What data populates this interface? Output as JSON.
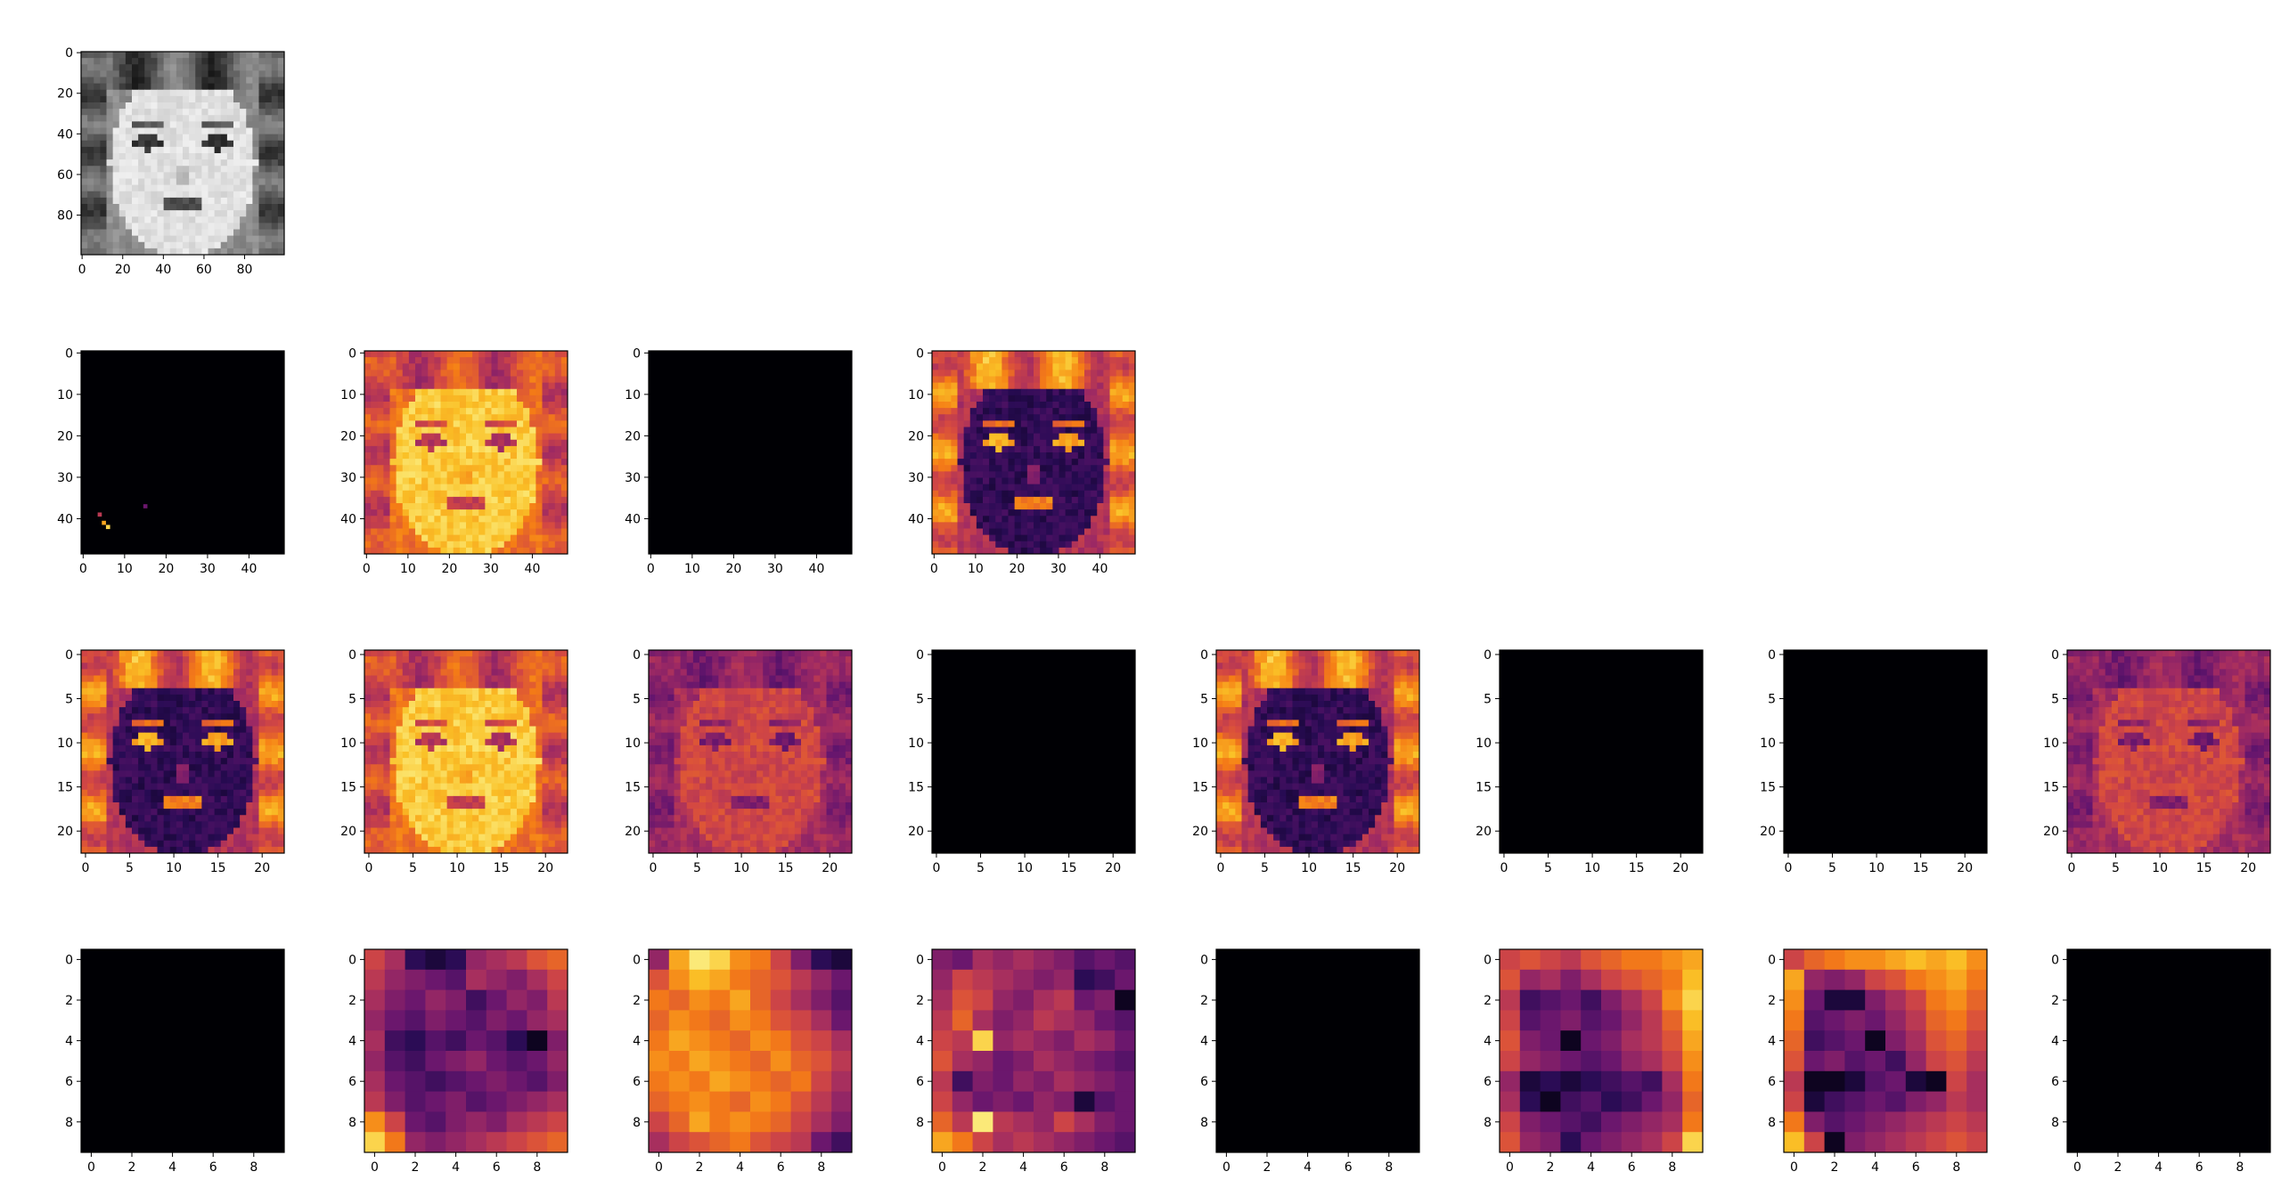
{
  "figure": {
    "rows": 4,
    "cols": 8
  },
  "chart_data": [
    {
      "type": "heatmap",
      "row": 0,
      "col": 0,
      "content": "face",
      "colormap": "gray",
      "xticks": [
        "0",
        "20",
        "40",
        "60",
        "80"
      ],
      "yticks": [
        "0",
        "20",
        "40",
        "60",
        "80"
      ],
      "xlim": [
        0,
        100
      ],
      "ylim": [
        0,
        100
      ]
    },
    {
      "type": "heatmap",
      "row": 1,
      "col": 0,
      "content": "black-specks",
      "colormap": "inferno",
      "xticks": [
        "0",
        "10",
        "20",
        "30",
        "40"
      ],
      "yticks": [
        "0",
        "10",
        "20",
        "30",
        "40"
      ],
      "xlim": [
        0,
        49
      ],
      "ylim": [
        0,
        49
      ]
    },
    {
      "type": "heatmap",
      "row": 1,
      "col": 1,
      "content": "face-bright",
      "colormap": "inferno",
      "xticks": [
        "0",
        "10",
        "20",
        "30",
        "40"
      ],
      "yticks": [
        "0",
        "10",
        "20",
        "30",
        "40"
      ],
      "xlim": [
        0,
        49
      ],
      "ylim": [
        0,
        49
      ]
    },
    {
      "type": "heatmap",
      "row": 1,
      "col": 2,
      "content": "black",
      "colormap": "inferno",
      "xticks": [
        "0",
        "10",
        "20",
        "30",
        "40"
      ],
      "yticks": [
        "0",
        "10",
        "20",
        "30",
        "40"
      ],
      "xlim": [
        0,
        49
      ],
      "ylim": [
        0,
        49
      ]
    },
    {
      "type": "heatmap",
      "row": 1,
      "col": 3,
      "content": "face-inverted",
      "colormap": "inferno",
      "xticks": [
        "0",
        "10",
        "20",
        "30",
        "40"
      ],
      "yticks": [
        "0",
        "10",
        "20",
        "30",
        "40"
      ],
      "xlim": [
        0,
        49
      ],
      "ylim": [
        0,
        49
      ]
    },
    {
      "type": "heatmap",
      "row": 2,
      "col": 0,
      "content": "face-inverted",
      "colormap": "inferno",
      "xticks": [
        "0",
        "5",
        "10",
        "15",
        "20"
      ],
      "yticks": [
        "0",
        "5",
        "10",
        "15",
        "20"
      ],
      "xlim": [
        0,
        23
      ],
      "ylim": [
        0,
        23
      ]
    },
    {
      "type": "heatmap",
      "row": 2,
      "col": 1,
      "content": "face-bright",
      "colormap": "inferno",
      "xticks": [
        "0",
        "5",
        "10",
        "15",
        "20"
      ],
      "yticks": [
        "0",
        "5",
        "10",
        "15",
        "20"
      ],
      "xlim": [
        0,
        23
      ],
      "ylim": [
        0,
        23
      ]
    },
    {
      "type": "heatmap",
      "row": 2,
      "col": 2,
      "content": "face-mid",
      "colormap": "inferno",
      "xticks": [
        "0",
        "5",
        "10",
        "15",
        "20"
      ],
      "yticks": [
        "0",
        "5",
        "10",
        "15",
        "20"
      ],
      "xlim": [
        0,
        23
      ],
      "ylim": [
        0,
        23
      ]
    },
    {
      "type": "heatmap",
      "row": 2,
      "col": 3,
      "content": "black",
      "colormap": "inferno",
      "xticks": [
        "0",
        "5",
        "10",
        "15",
        "20"
      ],
      "yticks": [
        "0",
        "5",
        "10",
        "15",
        "20"
      ],
      "xlim": [
        0,
        23
      ],
      "ylim": [
        0,
        23
      ]
    },
    {
      "type": "heatmap",
      "row": 2,
      "col": 4,
      "content": "face-inverted",
      "colormap": "inferno",
      "xticks": [
        "0",
        "5",
        "10",
        "15",
        "20"
      ],
      "yticks": [
        "0",
        "5",
        "10",
        "15",
        "20"
      ],
      "xlim": [
        0,
        23
      ],
      "ylim": [
        0,
        23
      ]
    },
    {
      "type": "heatmap",
      "row": 2,
      "col": 5,
      "content": "black",
      "colormap": "inferno",
      "xticks": [
        "0",
        "5",
        "10",
        "15",
        "20"
      ],
      "yticks": [
        "0",
        "5",
        "10",
        "15",
        "20"
      ],
      "xlim": [
        0,
        23
      ],
      "ylim": [
        0,
        23
      ]
    },
    {
      "type": "heatmap",
      "row": 2,
      "col": 6,
      "content": "black",
      "colormap": "inferno",
      "xticks": [
        "0",
        "5",
        "10",
        "15",
        "20"
      ],
      "yticks": [
        "0",
        "5",
        "10",
        "15",
        "20"
      ],
      "xlim": [
        0,
        23
      ],
      "ylim": [
        0,
        23
      ]
    },
    {
      "type": "heatmap",
      "row": 2,
      "col": 7,
      "content": "face-mid",
      "colormap": "inferno",
      "xticks": [
        "0",
        "5",
        "10",
        "15",
        "20"
      ],
      "yticks": [
        "0",
        "5",
        "10",
        "15",
        "20"
      ],
      "xlim": [
        0,
        23
      ],
      "ylim": [
        0,
        23
      ]
    },
    {
      "type": "heatmap",
      "row": 3,
      "col": 0,
      "content": "black",
      "colormap": "inferno",
      "xticks": [
        "0",
        "2",
        "4",
        "6",
        "8"
      ],
      "yticks": [
        "0",
        "2",
        "4",
        "6",
        "8"
      ],
      "xlim": [
        0,
        10
      ],
      "ylim": [
        0,
        10
      ]
    },
    {
      "type": "heatmap",
      "row": 3,
      "col": 1,
      "content": "grid",
      "colormap": "inferno",
      "xticks": [
        "0",
        "2",
        "4",
        "6",
        "8"
      ],
      "yticks": [
        "0",
        "2",
        "4",
        "6",
        "8"
      ],
      "xlim": [
        0,
        10
      ],
      "ylim": [
        0,
        10
      ],
      "values": [
        [
          0.55,
          0.45,
          0.15,
          0.1,
          0.15,
          0.4,
          0.45,
          0.5,
          0.6,
          0.65
        ],
        [
          0.5,
          0.4,
          0.35,
          0.3,
          0.25,
          0.45,
          0.4,
          0.35,
          0.45,
          0.55
        ],
        [
          0.45,
          0.35,
          0.3,
          0.4,
          0.35,
          0.2,
          0.3,
          0.4,
          0.35,
          0.5
        ],
        [
          0.4,
          0.3,
          0.25,
          0.35,
          0.3,
          0.25,
          0.35,
          0.3,
          0.4,
          0.45
        ],
        [
          0.45,
          0.2,
          0.15,
          0.25,
          0.2,
          0.3,
          0.25,
          0.15,
          0.05,
          0.35
        ],
        [
          0.4,
          0.25,
          0.2,
          0.3,
          0.35,
          0.4,
          0.3,
          0.25,
          0.3,
          0.4
        ],
        [
          0.45,
          0.3,
          0.25,
          0.2,
          0.25,
          0.3,
          0.35,
          0.3,
          0.25,
          0.35
        ],
        [
          0.5,
          0.35,
          0.25,
          0.3,
          0.35,
          0.25,
          0.3,
          0.35,
          0.4,
          0.45
        ],
        [
          0.75,
          0.55,
          0.3,
          0.25,
          0.35,
          0.4,
          0.35,
          0.45,
          0.5,
          0.55
        ],
        [
          0.9,
          0.7,
          0.4,
          0.35,
          0.4,
          0.45,
          0.5,
          0.55,
          0.6,
          0.65
        ]
      ]
    },
    {
      "type": "heatmap",
      "row": 3,
      "col": 2,
      "content": "grid",
      "colormap": "inferno",
      "xticks": [
        "0",
        "2",
        "4",
        "6",
        "8"
      ],
      "yticks": [
        "0",
        "2",
        "4",
        "6",
        "8"
      ],
      "xlim": [
        0,
        10
      ],
      "ylim": [
        0,
        10
      ],
      "values": [
        [
          0.4,
          0.8,
          0.95,
          0.9,
          0.75,
          0.7,
          0.55,
          0.35,
          0.15,
          0.1
        ],
        [
          0.6,
          0.75,
          0.85,
          0.8,
          0.7,
          0.65,
          0.6,
          0.5,
          0.4,
          0.3
        ],
        [
          0.7,
          0.65,
          0.75,
          0.7,
          0.8,
          0.65,
          0.55,
          0.45,
          0.35,
          0.25
        ],
        [
          0.65,
          0.75,
          0.7,
          0.65,
          0.75,
          0.7,
          0.6,
          0.55,
          0.45,
          0.3
        ],
        [
          0.7,
          0.8,
          0.75,
          0.7,
          0.65,
          0.75,
          0.7,
          0.6,
          0.55,
          0.45
        ],
        [
          0.75,
          0.7,
          0.8,
          0.75,
          0.7,
          0.65,
          0.75,
          0.65,
          0.6,
          0.5
        ],
        [
          0.7,
          0.75,
          0.7,
          0.8,
          0.75,
          0.7,
          0.65,
          0.7,
          0.55,
          0.45
        ],
        [
          0.65,
          0.7,
          0.75,
          0.7,
          0.65,
          0.75,
          0.7,
          0.6,
          0.5,
          0.4
        ],
        [
          0.55,
          0.65,
          0.8,
          0.7,
          0.75,
          0.7,
          0.65,
          0.55,
          0.45,
          0.35
        ],
        [
          0.45,
          0.55,
          0.6,
          0.65,
          0.7,
          0.6,
          0.55,
          0.5,
          0.3,
          0.2
        ]
      ]
    },
    {
      "type": "heatmap",
      "row": 3,
      "col": 3,
      "content": "grid",
      "colormap": "inferno",
      "xticks": [
        "0",
        "2",
        "4",
        "6",
        "8"
      ],
      "yticks": [
        "0",
        "2",
        "4",
        "6",
        "8"
      ],
      "xlim": [
        0,
        10
      ],
      "ylim": [
        0,
        10
      ],
      "values": [
        [
          0.35,
          0.3,
          0.45,
          0.4,
          0.45,
          0.4,
          0.35,
          0.25,
          0.3,
          0.25
        ],
        [
          0.4,
          0.55,
          0.5,
          0.45,
          0.4,
          0.35,
          0.4,
          0.15,
          0.2,
          0.3
        ],
        [
          0.45,
          0.6,
          0.55,
          0.4,
          0.35,
          0.45,
          0.5,
          0.3,
          0.35,
          0.05
        ],
        [
          0.5,
          0.65,
          0.45,
          0.35,
          0.4,
          0.5,
          0.45,
          0.4,
          0.3,
          0.25
        ],
        [
          0.55,
          0.5,
          0.9,
          0.4,
          0.45,
          0.4,
          0.35,
          0.45,
          0.4,
          0.3
        ],
        [
          0.6,
          0.45,
          0.4,
          0.3,
          0.35,
          0.45,
          0.4,
          0.35,
          0.3,
          0.25
        ],
        [
          0.5,
          0.2,
          0.35,
          0.3,
          0.4,
          0.35,
          0.45,
          0.4,
          0.35,
          0.3
        ],
        [
          0.55,
          0.4,
          0.3,
          0.35,
          0.3,
          0.4,
          0.35,
          0.1,
          0.25,
          0.3
        ],
        [
          0.65,
          0.5,
          0.95,
          0.5,
          0.45,
          0.4,
          0.55,
          0.45,
          0.35,
          0.3
        ],
        [
          0.8,
          0.7,
          0.55,
          0.45,
          0.5,
          0.45,
          0.4,
          0.35,
          0.3,
          0.25
        ]
      ]
    },
    {
      "type": "heatmap",
      "row": 3,
      "col": 4,
      "content": "black",
      "colormap": "inferno",
      "xticks": [
        "0",
        "2",
        "4",
        "6",
        "8"
      ],
      "yticks": [
        "0",
        "2",
        "4",
        "6",
        "8"
      ],
      "xlim": [
        0,
        10
      ],
      "ylim": [
        0,
        10
      ]
    },
    {
      "type": "heatmap",
      "row": 3,
      "col": 5,
      "content": "grid",
      "colormap": "inferno",
      "xticks": [
        "0",
        "2",
        "4",
        "6",
        "8"
      ],
      "yticks": [
        "0",
        "2",
        "4",
        "6",
        "8"
      ],
      "xlim": [
        0,
        10
      ],
      "ylim": [
        0,
        10
      ],
      "values": [
        [
          0.55,
          0.6,
          0.55,
          0.5,
          0.6,
          0.65,
          0.7,
          0.7,
          0.75,
          0.8
        ],
        [
          0.6,
          0.4,
          0.45,
          0.35,
          0.45,
          0.55,
          0.6,
          0.65,
          0.7,
          0.85
        ],
        [
          0.5,
          0.2,
          0.25,
          0.3,
          0.2,
          0.35,
          0.45,
          0.55,
          0.75,
          0.9
        ],
        [
          0.55,
          0.25,
          0.3,
          0.35,
          0.25,
          0.3,
          0.4,
          0.5,
          0.65,
          0.85
        ],
        [
          0.6,
          0.35,
          0.3,
          0.05,
          0.3,
          0.35,
          0.45,
          0.5,
          0.6,
          0.8
        ],
        [
          0.55,
          0.4,
          0.35,
          0.3,
          0.25,
          0.3,
          0.4,
          0.45,
          0.55,
          0.75
        ],
        [
          0.4,
          0.1,
          0.15,
          0.1,
          0.15,
          0.2,
          0.25,
          0.2,
          0.45,
          0.7
        ],
        [
          0.45,
          0.15,
          0.05,
          0.2,
          0.25,
          0.15,
          0.2,
          0.3,
          0.4,
          0.65
        ],
        [
          0.55,
          0.35,
          0.3,
          0.25,
          0.2,
          0.3,
          0.35,
          0.4,
          0.45,
          0.7
        ],
        [
          0.6,
          0.4,
          0.35,
          0.15,
          0.3,
          0.35,
          0.4,
          0.45,
          0.55,
          0.9
        ]
      ]
    },
    {
      "type": "heatmap",
      "row": 3,
      "col": 6,
      "content": "grid",
      "colormap": "inferno",
      "xticks": [
        "0",
        "2",
        "4",
        "6",
        "8"
      ],
      "yticks": [
        "0",
        "2",
        "4",
        "6",
        "8"
      ],
      "xlim": [
        0,
        10
      ],
      "ylim": [
        0,
        10
      ],
      "values": [
        [
          0.55,
          0.65,
          0.7,
          0.75,
          0.75,
          0.8,
          0.85,
          0.8,
          0.85,
          0.75
        ],
        [
          0.8,
          0.4,
          0.35,
          0.4,
          0.55,
          0.6,
          0.7,
          0.75,
          0.8,
          0.7
        ],
        [
          0.75,
          0.3,
          0.1,
          0.1,
          0.35,
          0.45,
          0.55,
          0.7,
          0.75,
          0.65
        ],
        [
          0.7,
          0.25,
          0.3,
          0.35,
          0.3,
          0.4,
          0.5,
          0.65,
          0.7,
          0.6
        ],
        [
          0.65,
          0.2,
          0.25,
          0.3,
          0.05,
          0.35,
          0.45,
          0.6,
          0.65,
          0.55
        ],
        [
          0.6,
          0.3,
          0.35,
          0.25,
          0.3,
          0.2,
          0.4,
          0.55,
          0.6,
          0.5
        ],
        [
          0.5,
          0.05,
          0.05,
          0.1,
          0.25,
          0.3,
          0.1,
          0.05,
          0.55,
          0.45
        ],
        [
          0.55,
          0.1,
          0.2,
          0.25,
          0.3,
          0.25,
          0.35,
          0.4,
          0.5,
          0.45
        ],
        [
          0.7,
          0.35,
          0.25,
          0.3,
          0.35,
          0.4,
          0.45,
          0.5,
          0.55,
          0.5
        ],
        [
          0.85,
          0.55,
          0.05,
          0.35,
          0.4,
          0.45,
          0.5,
          0.55,
          0.6,
          0.55
        ]
      ]
    },
    {
      "type": "heatmap",
      "row": 3,
      "col": 7,
      "content": "black",
      "colormap": "inferno",
      "xticks": [
        "0",
        "2",
        "4",
        "6",
        "8"
      ],
      "yticks": [
        "0",
        "2",
        "4",
        "6",
        "8"
      ],
      "xlim": [
        0,
        10
      ],
      "ylim": [
        0,
        10
      ]
    }
  ]
}
